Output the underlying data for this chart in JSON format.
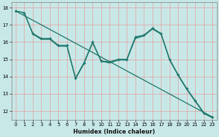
{
  "xlabel": "Humidex (Indice chaleur)",
  "bg_color": "#c8e8e8",
  "line_color": "#217a6e",
  "grid_color": "#e89898",
  "xlim": [
    -0.5,
    23.5
  ],
  "ylim": [
    11.5,
    18.3
  ],
  "yticks": [
    12,
    13,
    14,
    15,
    16,
    17,
    18
  ],
  "xticks": [
    0,
    1,
    2,
    3,
    4,
    5,
    6,
    7,
    8,
    9,
    10,
    11,
    12,
    13,
    14,
    15,
    16,
    17,
    18,
    19,
    20,
    21,
    22,
    23
  ],
  "series": [
    {
      "x": [
        0,
        23
      ],
      "y": [
        17.8,
        11.65
      ],
      "marker": false,
      "linewidth": 1.0
    },
    {
      "x": [
        0,
        1,
        2,
        3,
        4,
        5,
        6,
        7,
        8,
        9,
        10,
        11,
        12,
        13,
        14,
        15,
        16,
        17,
        18,
        19,
        20,
        21,
        22,
        23
      ],
      "y": [
        17.8,
        17.7,
        16.5,
        16.2,
        16.2,
        15.8,
        15.8,
        13.9,
        14.8,
        16.0,
        14.9,
        14.85,
        15.0,
        15.0,
        16.3,
        16.4,
        16.8,
        16.5,
        15.0,
        14.1,
        13.3,
        12.6,
        11.9,
        11.65
      ],
      "marker": true,
      "linewidth": 1.0
    },
    {
      "x": [
        0,
        1,
        2,
        3,
        4,
        5,
        6,
        7,
        8,
        9,
        10,
        11,
        12,
        13,
        14,
        15,
        16,
        17,
        18,
        19,
        20,
        21,
        22,
        23
      ],
      "y": [
        17.8,
        17.7,
        16.45,
        16.15,
        16.15,
        15.75,
        15.75,
        13.85,
        14.75,
        15.95,
        14.88,
        14.78,
        14.95,
        14.95,
        16.2,
        16.35,
        16.75,
        16.45,
        14.95,
        14.05,
        13.25,
        12.55,
        11.85,
        11.6
      ],
      "marker": false,
      "linewidth": 0.8
    },
    {
      "x": [
        1,
        2,
        3,
        4,
        5,
        6,
        7,
        8,
        9,
        10,
        11,
        12,
        13,
        14,
        15,
        16,
        17,
        18,
        19,
        20,
        21,
        22,
        23
      ],
      "y": [
        17.7,
        16.5,
        16.2,
        16.2,
        15.8,
        15.8,
        13.9,
        14.82,
        15.98,
        14.88,
        14.82,
        14.98,
        14.98,
        16.25,
        16.38,
        16.78,
        16.48,
        14.98,
        14.08,
        13.28,
        12.58,
        11.88,
        11.62
      ],
      "marker": false,
      "linewidth": 0.8
    }
  ]
}
